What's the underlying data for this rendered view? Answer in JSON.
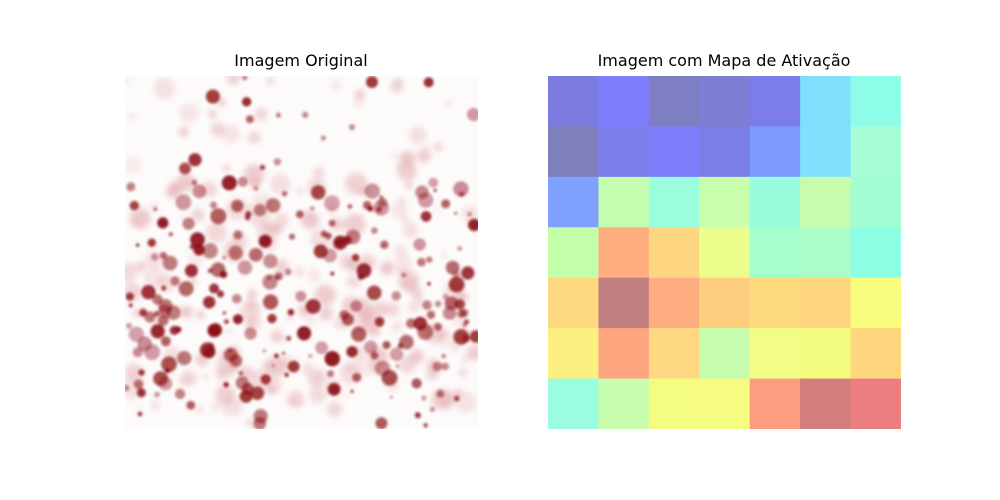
{
  "left_panel": {
    "title": "Imagem Original",
    "content": "microscopy image of dense dark-red dots and droplets on a white background",
    "colors": {
      "dot": "#8b0e14",
      "dot_faint": "#e6b3b6",
      "background": "#ffffff"
    }
  },
  "right_panel": {
    "title": "Imagem com Mapa de Ativação",
    "grid_rows": 7,
    "grid_cols": 7,
    "activation_colors": [
      [
        "#7c7ce0",
        "#7f7ffd",
        "#7e7fc2",
        "#7e7fd4",
        "#7c7de8",
        "#80dffd",
        "#8efde7"
      ],
      [
        "#7f7fbd",
        "#7c7eec",
        "#7f7ffd",
        "#7b7ee6",
        "#7d9bfd",
        "#80e0fd",
        "#a6fed6"
      ],
      [
        "#7fa0fd",
        "#c4fdb0",
        "#9afdde",
        "#c8feac",
        "#99fddd",
        "#c8fcac",
        "#a1fdd2"
      ],
      [
        "#c4fea9",
        "#feae7f",
        "#fed581",
        "#ecfd8c",
        "#a4fece",
        "#aafec8",
        "#8dfee4"
      ],
      [
        "#fed87f",
        "#bf7f7f",
        "#feae80",
        "#fecf7e",
        "#fedc7e",
        "#fed67e",
        "#f8fd80"
      ],
      [
        "#fcf080",
        "#fea680",
        "#fed982",
        "#c6fdae",
        "#f1fd87",
        "#f4fc80",
        "#fed67e"
      ],
      [
        "#9afde0",
        "#c8fdad",
        "#f5fd80",
        "#f6fc81",
        "#fe9c80",
        "#d27e7f",
        "#eb7f7f"
      ]
    ]
  }
}
